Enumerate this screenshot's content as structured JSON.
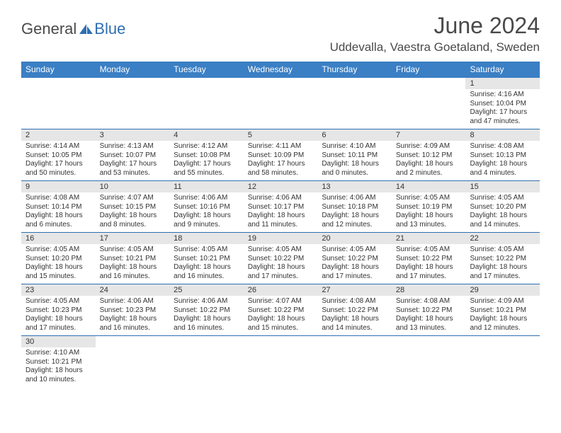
{
  "brand": {
    "text1": "General",
    "text2": "Blue"
  },
  "colors": {
    "header_bg": "#3b7fc4",
    "header_text": "#ffffff",
    "daynum_bg": "#e6e6e6",
    "divider": "#2f6fb0",
    "page_bg": "#ffffff",
    "text": "#333333",
    "title": "#4a4a4a",
    "logo_accent": "#2f6fb0"
  },
  "typography": {
    "title_fontsize": 32,
    "location_fontsize": 17,
    "weekday_fontsize": 12,
    "daynum_fontsize": 11,
    "detail_fontsize": 10,
    "font_family": "Arial"
  },
  "title": "June 2024",
  "location": "Uddevalla, Vaestra Goetaland, Sweden",
  "weekdays": [
    "Sunday",
    "Monday",
    "Tuesday",
    "Wednesday",
    "Thursday",
    "Friday",
    "Saturday"
  ],
  "calendar": {
    "type": "table",
    "columns": 7,
    "weeks": [
      [
        null,
        null,
        null,
        null,
        null,
        null,
        {
          "day": "1",
          "sunrise": "Sunrise: 4:16 AM",
          "sunset": "Sunset: 10:04 PM",
          "daylight": "Daylight: 17 hours and 47 minutes."
        }
      ],
      [
        {
          "day": "2",
          "sunrise": "Sunrise: 4:14 AM",
          "sunset": "Sunset: 10:05 PM",
          "daylight": "Daylight: 17 hours and 50 minutes."
        },
        {
          "day": "3",
          "sunrise": "Sunrise: 4:13 AM",
          "sunset": "Sunset: 10:07 PM",
          "daylight": "Daylight: 17 hours and 53 minutes."
        },
        {
          "day": "4",
          "sunrise": "Sunrise: 4:12 AM",
          "sunset": "Sunset: 10:08 PM",
          "daylight": "Daylight: 17 hours and 55 minutes."
        },
        {
          "day": "5",
          "sunrise": "Sunrise: 4:11 AM",
          "sunset": "Sunset: 10:09 PM",
          "daylight": "Daylight: 17 hours and 58 minutes."
        },
        {
          "day": "6",
          "sunrise": "Sunrise: 4:10 AM",
          "sunset": "Sunset: 10:11 PM",
          "daylight": "Daylight: 18 hours and 0 minutes."
        },
        {
          "day": "7",
          "sunrise": "Sunrise: 4:09 AM",
          "sunset": "Sunset: 10:12 PM",
          "daylight": "Daylight: 18 hours and 2 minutes."
        },
        {
          "day": "8",
          "sunrise": "Sunrise: 4:08 AM",
          "sunset": "Sunset: 10:13 PM",
          "daylight": "Daylight: 18 hours and 4 minutes."
        }
      ],
      [
        {
          "day": "9",
          "sunrise": "Sunrise: 4:08 AM",
          "sunset": "Sunset: 10:14 PM",
          "daylight": "Daylight: 18 hours and 6 minutes."
        },
        {
          "day": "10",
          "sunrise": "Sunrise: 4:07 AM",
          "sunset": "Sunset: 10:15 PM",
          "daylight": "Daylight: 18 hours and 8 minutes."
        },
        {
          "day": "11",
          "sunrise": "Sunrise: 4:06 AM",
          "sunset": "Sunset: 10:16 PM",
          "daylight": "Daylight: 18 hours and 9 minutes."
        },
        {
          "day": "12",
          "sunrise": "Sunrise: 4:06 AM",
          "sunset": "Sunset: 10:17 PM",
          "daylight": "Daylight: 18 hours and 11 minutes."
        },
        {
          "day": "13",
          "sunrise": "Sunrise: 4:06 AM",
          "sunset": "Sunset: 10:18 PM",
          "daylight": "Daylight: 18 hours and 12 minutes."
        },
        {
          "day": "14",
          "sunrise": "Sunrise: 4:05 AM",
          "sunset": "Sunset: 10:19 PM",
          "daylight": "Daylight: 18 hours and 13 minutes."
        },
        {
          "day": "15",
          "sunrise": "Sunrise: 4:05 AM",
          "sunset": "Sunset: 10:20 PM",
          "daylight": "Daylight: 18 hours and 14 minutes."
        }
      ],
      [
        {
          "day": "16",
          "sunrise": "Sunrise: 4:05 AM",
          "sunset": "Sunset: 10:20 PM",
          "daylight": "Daylight: 18 hours and 15 minutes."
        },
        {
          "day": "17",
          "sunrise": "Sunrise: 4:05 AM",
          "sunset": "Sunset: 10:21 PM",
          "daylight": "Daylight: 18 hours and 16 minutes."
        },
        {
          "day": "18",
          "sunrise": "Sunrise: 4:05 AM",
          "sunset": "Sunset: 10:21 PM",
          "daylight": "Daylight: 18 hours and 16 minutes."
        },
        {
          "day": "19",
          "sunrise": "Sunrise: 4:05 AM",
          "sunset": "Sunset: 10:22 PM",
          "daylight": "Daylight: 18 hours and 17 minutes."
        },
        {
          "day": "20",
          "sunrise": "Sunrise: 4:05 AM",
          "sunset": "Sunset: 10:22 PM",
          "daylight": "Daylight: 18 hours and 17 minutes."
        },
        {
          "day": "21",
          "sunrise": "Sunrise: 4:05 AM",
          "sunset": "Sunset: 10:22 PM",
          "daylight": "Daylight: 18 hours and 17 minutes."
        },
        {
          "day": "22",
          "sunrise": "Sunrise: 4:05 AM",
          "sunset": "Sunset: 10:22 PM",
          "daylight": "Daylight: 18 hours and 17 minutes."
        }
      ],
      [
        {
          "day": "23",
          "sunrise": "Sunrise: 4:05 AM",
          "sunset": "Sunset: 10:23 PM",
          "daylight": "Daylight: 18 hours and 17 minutes."
        },
        {
          "day": "24",
          "sunrise": "Sunrise: 4:06 AM",
          "sunset": "Sunset: 10:23 PM",
          "daylight": "Daylight: 18 hours and 16 minutes."
        },
        {
          "day": "25",
          "sunrise": "Sunrise: 4:06 AM",
          "sunset": "Sunset: 10:22 PM",
          "daylight": "Daylight: 18 hours and 16 minutes."
        },
        {
          "day": "26",
          "sunrise": "Sunrise: 4:07 AM",
          "sunset": "Sunset: 10:22 PM",
          "daylight": "Daylight: 18 hours and 15 minutes."
        },
        {
          "day": "27",
          "sunrise": "Sunrise: 4:08 AM",
          "sunset": "Sunset: 10:22 PM",
          "daylight": "Daylight: 18 hours and 14 minutes."
        },
        {
          "day": "28",
          "sunrise": "Sunrise: 4:08 AM",
          "sunset": "Sunset: 10:22 PM",
          "daylight": "Daylight: 18 hours and 13 minutes."
        },
        {
          "day": "29",
          "sunrise": "Sunrise: 4:09 AM",
          "sunset": "Sunset: 10:21 PM",
          "daylight": "Daylight: 18 hours and 12 minutes."
        }
      ],
      [
        {
          "day": "30",
          "sunrise": "Sunrise: 4:10 AM",
          "sunset": "Sunset: 10:21 PM",
          "daylight": "Daylight: 18 hours and 10 minutes."
        },
        null,
        null,
        null,
        null,
        null,
        null
      ]
    ]
  }
}
